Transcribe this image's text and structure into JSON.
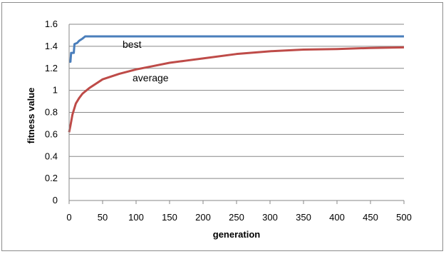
{
  "chart_data": {
    "type": "line",
    "xlabel": "generation",
    "ylabel": "fitness value",
    "xlim": [
      0,
      500
    ],
    "ylim": [
      0,
      1.6
    ],
    "x_ticks": [
      "0",
      "50",
      "100",
      "150",
      "200",
      "250",
      "300",
      "350",
      "400",
      "450",
      "500"
    ],
    "y_ticks": [
      "0",
      "0.2",
      "0.4",
      "0.6",
      "0.8",
      "1",
      "1.2",
      "1.4",
      "1.6"
    ],
    "grid": "horizontal",
    "legend": "none",
    "series": [
      {
        "name": "best",
        "color": "#4a7ebb",
        "points": [
          [
            0,
            1.26
          ],
          [
            2,
            1.26
          ],
          [
            3,
            1.34
          ],
          [
            7,
            1.34
          ],
          [
            8,
            1.42
          ],
          [
            12,
            1.43
          ],
          [
            15,
            1.45
          ],
          [
            20,
            1.47
          ],
          [
            24,
            1.49
          ],
          [
            500,
            1.49
          ]
        ]
      },
      {
        "name": "average",
        "color": "#be4b48",
        "points": [
          [
            0,
            0.62
          ],
          [
            2,
            0.68
          ],
          [
            5,
            0.78
          ],
          [
            10,
            0.88
          ],
          [
            15,
            0.93
          ],
          [
            20,
            0.97
          ],
          [
            30,
            1.02
          ],
          [
            40,
            1.06
          ],
          [
            50,
            1.1
          ],
          [
            75,
            1.15
          ],
          [
            100,
            1.19
          ],
          [
            125,
            1.22
          ],
          [
            150,
            1.25
          ],
          [
            175,
            1.27
          ],
          [
            200,
            1.29
          ],
          [
            250,
            1.33
          ],
          [
            300,
            1.355
          ],
          [
            350,
            1.37
          ],
          [
            400,
            1.375
          ],
          [
            450,
            1.385
          ],
          [
            500,
            1.39
          ]
        ]
      }
    ]
  }
}
